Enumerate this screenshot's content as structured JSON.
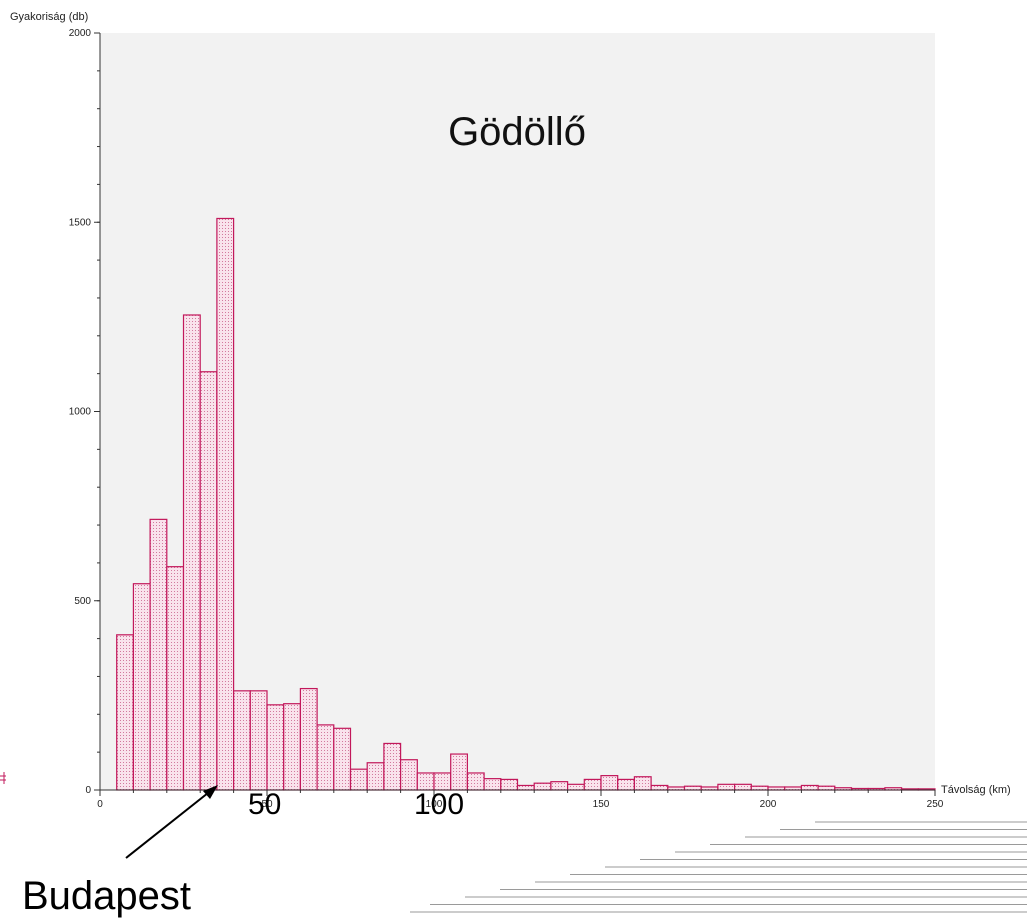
{
  "chart_data": {
    "type": "bar",
    "title": "Gödöllő",
    "xlabel": "Távolság (km)",
    "ylabel": "Gyakoriság (db)",
    "xlim": [
      0,
      250
    ],
    "ylim": [
      0,
      2000
    ],
    "bin_width": 5,
    "bin_starts": [
      5,
      10,
      15,
      20,
      25,
      30,
      35,
      40,
      45,
      50,
      55,
      60,
      65,
      70,
      75,
      80,
      85,
      90,
      95,
      100,
      105,
      110,
      115,
      120,
      125,
      130,
      135,
      140,
      145,
      150,
      155,
      160,
      165,
      170,
      175,
      180,
      185,
      190,
      195,
      200,
      205,
      210,
      215,
      220,
      225,
      230,
      235,
      240,
      245
    ],
    "values": [
      410,
      545,
      715,
      590,
      1255,
      1105,
      1510,
      262,
      262,
      225,
      228,
      268,
      172,
      163,
      55,
      72,
      123,
      80,
      45,
      45,
      95,
      45,
      30,
      28,
      12,
      18,
      22,
      15,
      28,
      38,
      28,
      35,
      12,
      8,
      10,
      8,
      15,
      15,
      10,
      8,
      8,
      12,
      10,
      6,
      4,
      4,
      6,
      3,
      3
    ],
    "x_ticks": [
      "0",
      "50",
      "100",
      "150",
      "200",
      "250"
    ],
    "y_ticks": [
      "0",
      "500",
      "1000",
      "1500",
      "2000"
    ],
    "grid": false,
    "annotations": [
      {
        "text": "50",
        "x": 50
      },
      {
        "text": "100",
        "x": 100
      },
      {
        "text": "Budapest",
        "x": 35,
        "arrow": true
      }
    ]
  },
  "colors": {
    "bar_edge": "#c2185b",
    "bar_fill": "#f7d9e6",
    "plot_bg": "#f2f2f2",
    "axis": "#333333"
  }
}
